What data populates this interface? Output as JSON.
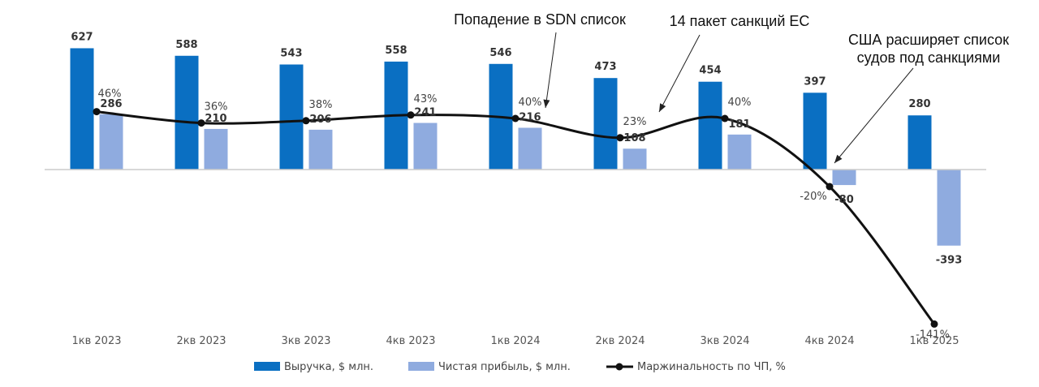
{
  "chart_data": {
    "type": "bar",
    "categories": [
      "1кв 2023",
      "2кв 2023",
      "3кв 2023",
      "4кв 2023",
      "1кв 2024",
      "2кв 2024",
      "3кв 2024",
      "4кв 2024",
      "1кв 2025"
    ],
    "series": [
      {
        "name": "Выручка, $ млн.",
        "type": "bar",
        "values": [
          627,
          588,
          543,
          558,
          546,
          473,
          454,
          397,
          280
        ],
        "color": "#0a6fc2"
      },
      {
        "name": "Чистая прибыль, $ млн.",
        "type": "bar",
        "values": [
          286,
          210,
          206,
          241,
          216,
          108,
          181,
          -80,
          -393
        ],
        "color": "#8fabdf"
      },
      {
        "name": "Маржинальность по ЧП, %",
        "type": "line",
        "values": [
          46,
          36,
          38,
          43,
          40,
          23,
          40,
          -20,
          -141
        ],
        "labels": [
          "46%",
          "36%",
          "38%",
          "43%",
          "40%",
          "23%",
          "40%",
          "-20%",
          "-141%"
        ],
        "color": "#111111"
      }
    ],
    "annotations": [
      {
        "text": [
          "Попадение в SDN список"
        ],
        "target": "1кв 2024"
      },
      {
        "text": [
          "14 пакет санкций ЕС"
        ],
        "target": "2кв 2024"
      },
      {
        "text": [
          "США расширяет список",
          "судов под санкциями"
        ],
        "target": "4кв 2024"
      }
    ],
    "legend": "bottom",
    "grid": false
  }
}
